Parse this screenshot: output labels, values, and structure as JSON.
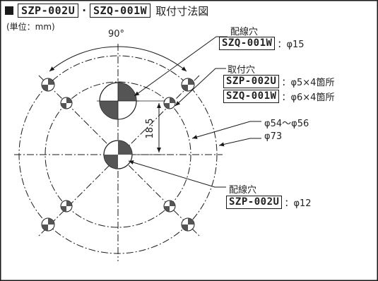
{
  "header": {
    "model_1": "SZP-002U",
    "separator": "·",
    "model_2": "SZQ-001W",
    "title": "取付寸法図"
  },
  "unit": "(単位：mm)",
  "annotations": {
    "angle": "90°",
    "dim_18_5": "18.5",
    "wiring_hole_top": {
      "label": "配線穴",
      "model": "SZQ-001W",
      "value": "：φ15"
    },
    "mounting_hole": {
      "label": "取付穴",
      "rows": [
        {
          "model": "SZP-002U",
          "value": "：φ5×4箇所"
        },
        {
          "model": "SZQ-001W",
          "value": "：φ6×4箇所"
        }
      ]
    },
    "dia_inner": "φ54〜φ56",
    "dia_outer": "φ73",
    "wiring_hole_bottom": {
      "label": "配線穴",
      "model": "SZP-002U",
      "value": "：φ12"
    }
  },
  "colors": {
    "stroke": "#1a1a1a",
    "fill_dark": "#555555",
    "background": "#ffffff"
  }
}
